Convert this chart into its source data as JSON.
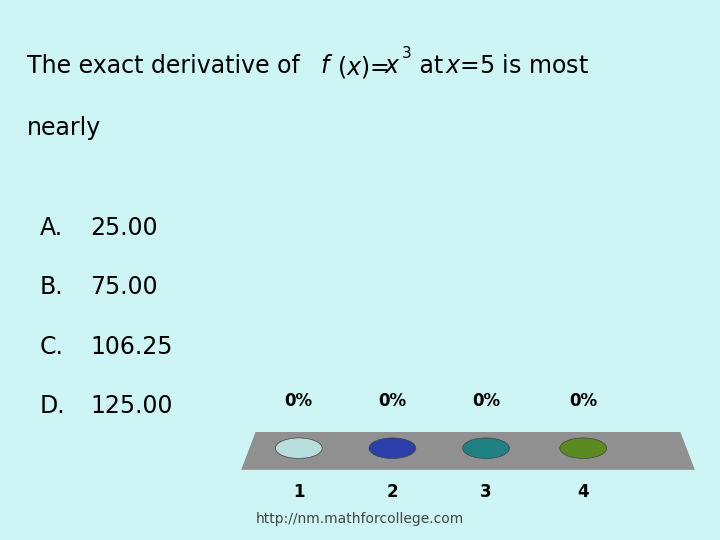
{
  "background_color": "#cef5f5",
  "options": [
    "A.",
    "B.",
    "C.",
    "D."
  ],
  "values": [
    "25.00",
    "75.00",
    "106.25",
    "125.00"
  ],
  "poll_labels": [
    "1",
    "2",
    "3",
    "4"
  ],
  "poll_percents": [
    "0%",
    "0%",
    "0%",
    "0%"
  ],
  "poll_colors": [
    "#b8dede",
    "#2b3faa",
    "#1e8080",
    "#5a8a20"
  ],
  "footer": "http://nm.mathforcollege.com",
  "text_color": "#000000",
  "bar_color": "#909090",
  "font_size_title": 17,
  "font_size_options": 17,
  "font_size_poll": 12
}
